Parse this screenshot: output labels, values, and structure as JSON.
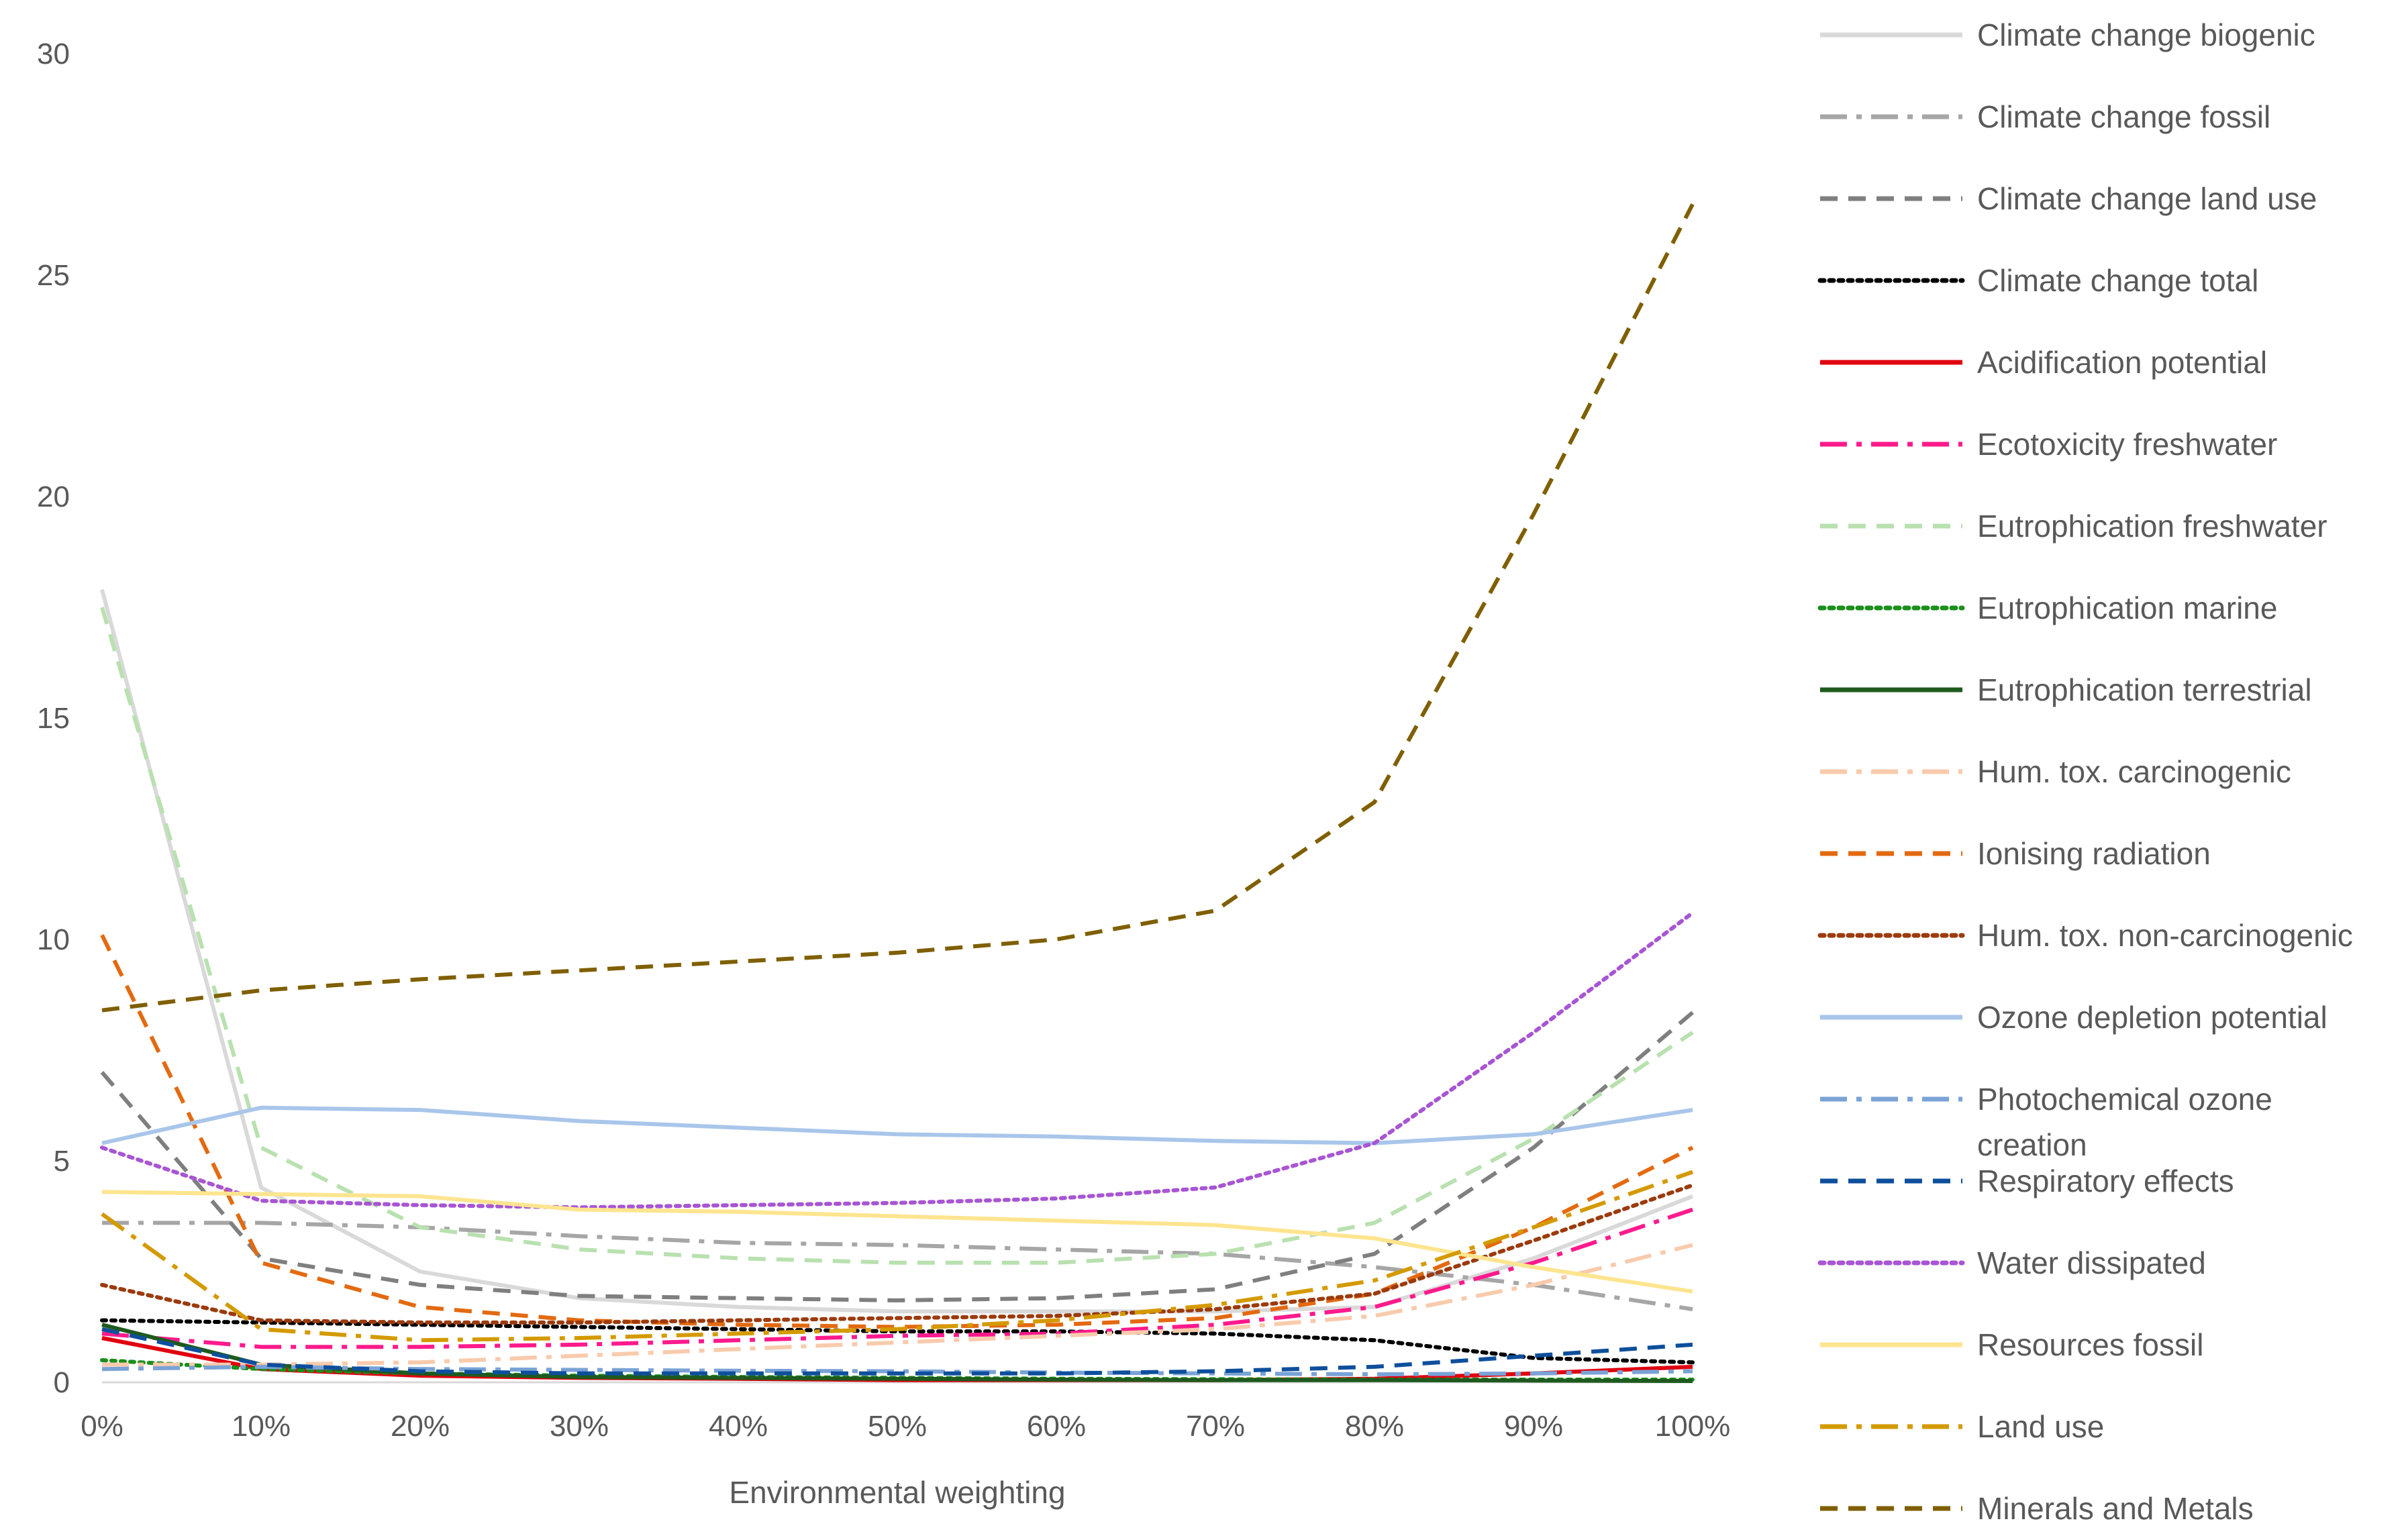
{
  "chart_data": {
    "type": "line",
    "title": "",
    "xlabel": "Environmental weighting",
    "ylabel": "",
    "ylim": [
      0,
      30
    ],
    "yticks": [
      0,
      5,
      10,
      15,
      20,
      25,
      30
    ],
    "grid": false,
    "legend_position": "right",
    "categories": [
      "0%",
      "10%",
      "20%",
      "30%",
      "40%",
      "50%",
      "60%",
      "70%",
      "80%",
      "90%",
      "100%"
    ],
    "series": [
      {
        "name": "Climate change biogenic",
        "color": "#d9d9d9",
        "dash": "solid",
        "values": [
          17.9,
          4.4,
          2.5,
          1.9,
          1.7,
          1.6,
          1.6,
          1.6,
          1.7,
          2.8,
          4.2
        ]
      },
      {
        "name": "Climate change fossil",
        "color": "#a6a6a6",
        "dash": "longdashdot",
        "values": [
          3.6,
          3.6,
          3.5,
          3.3,
          3.15,
          3.1,
          3.0,
          2.9,
          2.6,
          2.2,
          1.65
        ]
      },
      {
        "name": "Climate change land use",
        "color": "#7f7f7f",
        "dash": "dash",
        "values": [
          7.0,
          2.8,
          2.2,
          1.95,
          1.9,
          1.85,
          1.9,
          2.1,
          2.9,
          5.3,
          8.35
        ]
      },
      {
        "name": "Climate change total",
        "color": "#000000",
        "dash": "dot",
        "values": [
          1.4,
          1.35,
          1.3,
          1.25,
          1.2,
          1.15,
          1.15,
          1.1,
          0.95,
          0.55,
          0.45
        ]
      },
      {
        "name": "Acidification potential",
        "color": "#e0000f",
        "dash": "solid",
        "values": [
          1.0,
          0.3,
          0.15,
          0.1,
          0.08,
          0.05,
          0.05,
          0.05,
          0.08,
          0.2,
          0.35
        ]
      },
      {
        "name": "Ecotoxicity freshwater",
        "color": "#ff1a8c",
        "dash": "longdashdot",
        "values": [
          1.1,
          0.8,
          0.8,
          0.85,
          0.95,
          1.05,
          1.1,
          1.3,
          1.7,
          2.7,
          3.9
        ]
      },
      {
        "name": "Eutrophication freshwater",
        "color": "#b9e1b0",
        "dash": "dash",
        "values": [
          17.5,
          5.3,
          3.5,
          3.0,
          2.8,
          2.7,
          2.7,
          2.9,
          3.6,
          5.5,
          7.9
        ]
      },
      {
        "name": "Eutrophication marine",
        "color": "#1a8f1a",
        "dash": "dot",
        "values": [
          0.5,
          0.3,
          0.2,
          0.15,
          0.12,
          0.1,
          0.08,
          0.07,
          0.06,
          0.06,
          0.06
        ]
      },
      {
        "name": "Eutrophication terrestrial",
        "color": "#1e5a1e",
        "dash": "solid",
        "values": [
          1.3,
          0.4,
          0.2,
          0.12,
          0.1,
          0.08,
          0.06,
          0.05,
          0.05,
          0.04,
          0.03
        ]
      },
      {
        "name": "Hum. tox. carcinogenic",
        "color": "#f8cbad",
        "dash": "longdashdot",
        "values": [
          0.4,
          0.4,
          0.45,
          0.6,
          0.75,
          0.9,
          1.05,
          1.2,
          1.5,
          2.2,
          3.1
        ]
      },
      {
        "name": "Ionising radiation",
        "color": "#e36a10",
        "dash": "dash",
        "values": [
          10.1,
          2.7,
          1.7,
          1.4,
          1.3,
          1.25,
          1.3,
          1.45,
          2.0,
          3.5,
          5.3
        ]
      },
      {
        "name": "Hum. tox. non-carcinogenic",
        "color": "#9c3a0c",
        "dash": "dot",
        "values": [
          2.2,
          1.4,
          1.35,
          1.35,
          1.4,
          1.45,
          1.5,
          1.65,
          2.0,
          3.2,
          4.45
        ]
      },
      {
        "name": "Ozone depletion potential",
        "color": "#a9c6ea",
        "dash": "solid",
        "values": [
          5.4,
          6.2,
          6.15,
          5.9,
          5.75,
          5.6,
          5.55,
          5.45,
          5.4,
          5.6,
          6.15
        ]
      },
      {
        "name": "Photochemical ozone creation",
        "color": "#7aa3d6",
        "dash": "longdashdot",
        "values": [
          0.3,
          0.35,
          0.3,
          0.28,
          0.26,
          0.25,
          0.22,
          0.2,
          0.18,
          0.2,
          0.25
        ]
      },
      {
        "name": "Respiratory effects",
        "color": "#0e4f9c",
        "dash": "dash",
        "values": [
          1.2,
          0.4,
          0.25,
          0.2,
          0.2,
          0.2,
          0.2,
          0.25,
          0.35,
          0.6,
          0.85
        ]
      },
      {
        "name": "Water dissipated",
        "color": "#a855d4",
        "dash": "dot",
        "values": [
          5.3,
          4.1,
          4.0,
          3.95,
          4.0,
          4.05,
          4.15,
          4.4,
          5.4,
          7.9,
          10.6
        ]
      },
      {
        "name": "Resources fossil",
        "color": "#fde58f",
        "dash": "solid",
        "values": [
          4.3,
          4.25,
          4.2,
          3.9,
          3.85,
          3.75,
          3.65,
          3.55,
          3.25,
          2.6,
          2.05
        ]
      },
      {
        "name": "Land use",
        "color": "#d49a00",
        "dash": "longdashdot",
        "values": [
          3.8,
          1.2,
          0.95,
          1.0,
          1.1,
          1.2,
          1.4,
          1.75,
          2.3,
          3.5,
          4.75
        ]
      },
      {
        "name": "Minerals and Metals",
        "color": "#7f5f00",
        "dash": "dash",
        "values": [
          8.4,
          8.85,
          9.1,
          9.3,
          9.5,
          9.7,
          10.0,
          10.65,
          13.1,
          19.6,
          26.6
        ]
      }
    ],
    "legend_labels_display": {
      "Photochemical ozone creation": [
        "Photochemical ozone",
        "creation"
      ]
    }
  }
}
